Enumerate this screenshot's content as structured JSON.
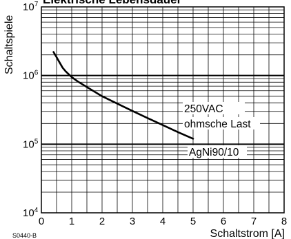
{
  "chart_data": {
    "type": "line",
    "title": "Elektrische Lebensdauer",
    "xlabel": "Schaltstrom [A]",
    "ylabel": "Schaltspiele",
    "xlim": [
      0,
      8
    ],
    "ylim": [
      10000,
      10000000
    ],
    "yscale": "log",
    "x_ticks": [
      "0",
      "1",
      "2",
      "3",
      "4",
      "5",
      "6",
      "7",
      "8"
    ],
    "y_ticks": [
      {
        "base": "10",
        "exp": "4",
        "value": 10000
      },
      {
        "base": "10",
        "exp": "5",
        "value": 100000
      },
      {
        "base": "10",
        "exp": "6",
        "value": 1000000
      },
      {
        "base": "10",
        "exp": "7",
        "value": 10000000
      }
    ],
    "grid": true,
    "series": [
      {
        "x": [
          0.4,
          0.5,
          0.6,
          0.7,
          0.8,
          1.0,
          1.2,
          1.5,
          2.0,
          2.5,
          3.0,
          3.5,
          4.0,
          4.5,
          5.0
        ],
        "y": [
          2200000,
          1850000,
          1550000,
          1300000,
          1150000,
          950000,
          820000,
          680000,
          500000,
          390000,
          305000,
          240000,
          190000,
          150000,
          120000
        ]
      }
    ],
    "annotations": [
      "250VAC",
      "ohmsche Last",
      "AgNi90/10"
    ],
    "figure_code": "S0440-B"
  }
}
